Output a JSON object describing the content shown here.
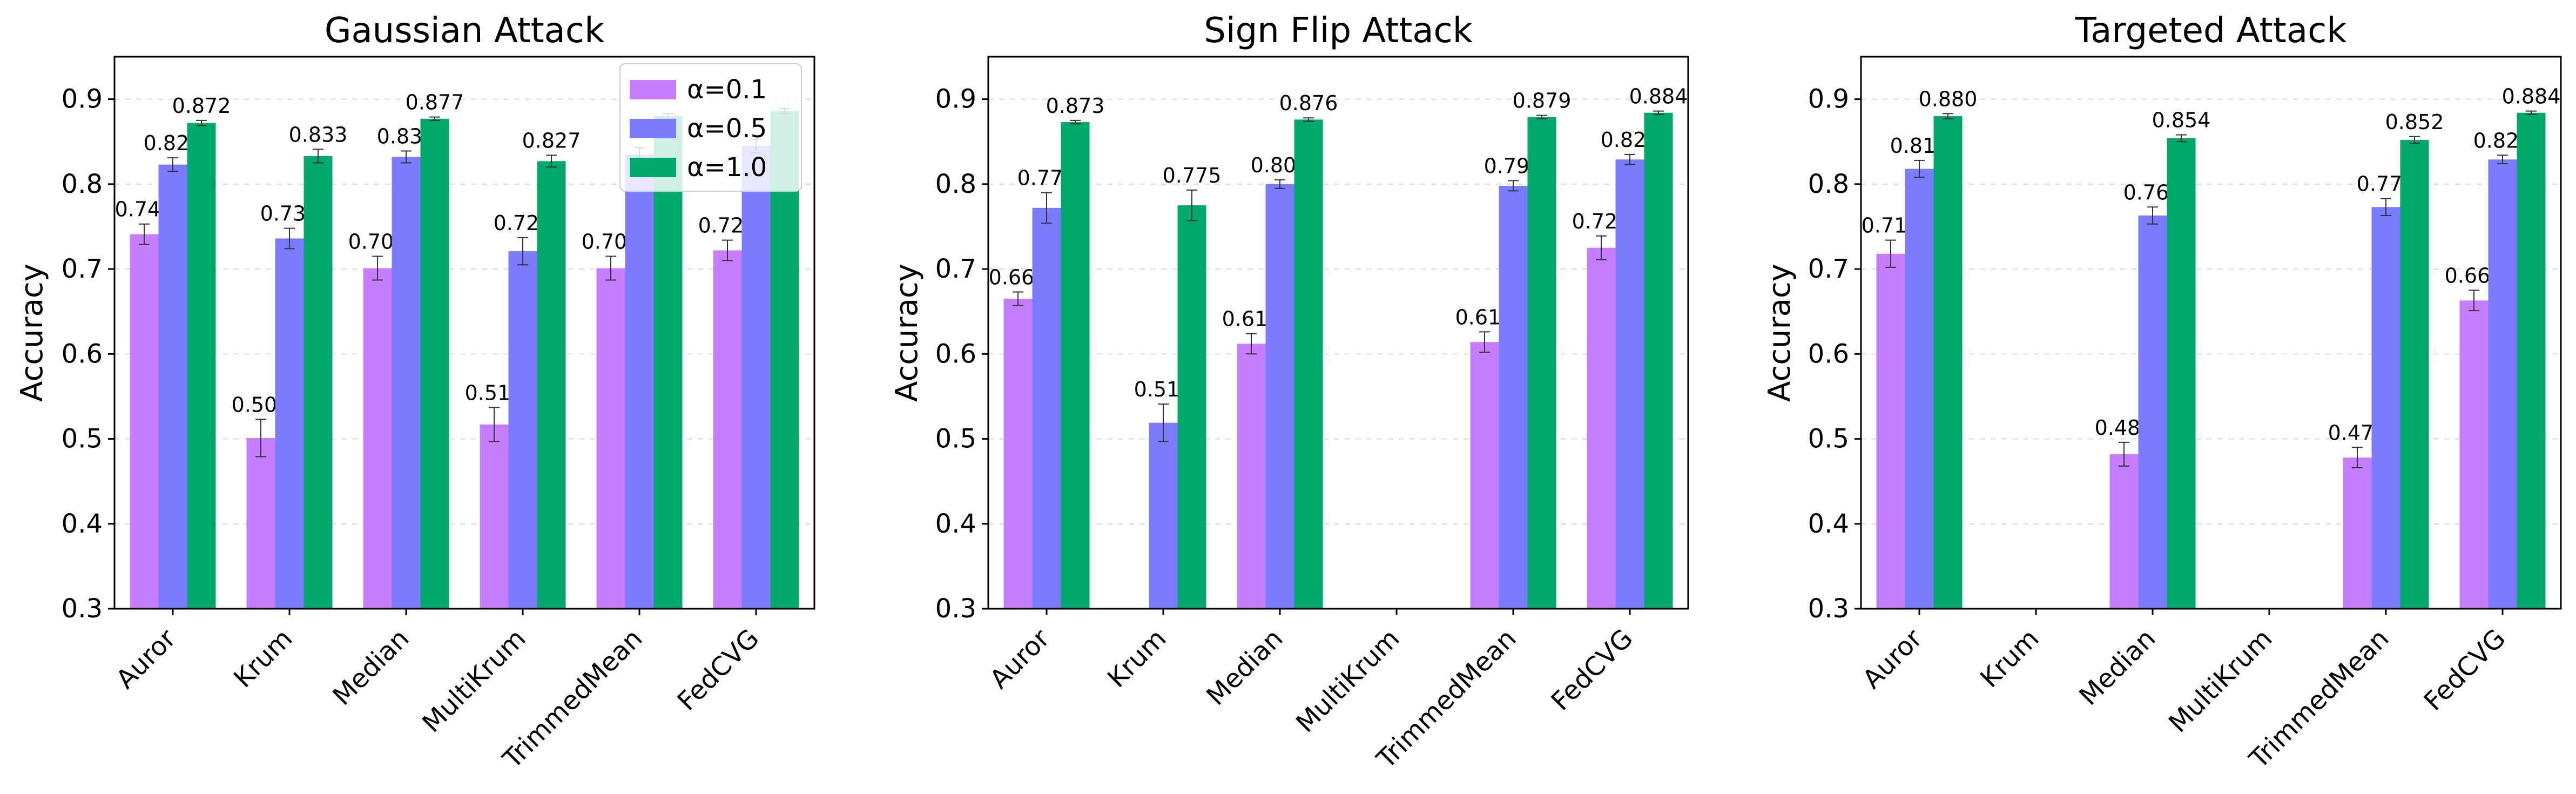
{
  "colors": {
    "alpha_0_1": "#c77dff",
    "alpha_0_5": "#7b7bff",
    "alpha_1_0": "#00a86b",
    "errorbar": "#333333",
    "grid": "#d9d9d9"
  },
  "legend": {
    "placement": "top-right of first panel",
    "entries": [
      "α=0.1",
      "α=0.5",
      "α=1.0"
    ]
  },
  "chart_data": [
    {
      "type": "bar",
      "title": "Gaussian Attack",
      "ylabel": "Accuracy",
      "ylim": [
        0.3,
        0.95
      ],
      "yticks": [
        "0.3",
        "0.4",
        "0.5",
        "0.6",
        "0.7",
        "0.8",
        "0.9"
      ],
      "grid": "horizontal dashed",
      "categories": [
        "Auror",
        "Krum",
        "Median",
        "MultiKrum",
        "TrimmedMean",
        "FedCVG"
      ],
      "series": [
        {
          "name": "α=0.1",
          "values": [
            0.741,
            0.501,
            0.701,
            0.517,
            0.701,
            0.722
          ],
          "errors": [
            0.012,
            0.022,
            0.014,
            0.02,
            0.014,
            0.012
          ]
        },
        {
          "name": "α=0.5",
          "values": [
            0.823,
            0.736,
            0.832,
            0.721,
            0.835,
            0.845
          ],
          "errors": [
            0.008,
            0.012,
            0.007,
            0.016,
            0.008,
            0.008
          ]
        },
        {
          "name": "α=1.0",
          "values": [
            0.872,
            0.833,
            0.877,
            0.827,
            0.88,
            0.886
          ],
          "errors": [
            0.003,
            0.008,
            0.002,
            0.007,
            0.003,
            0.003
          ]
        }
      ],
      "value_labels": [
        [
          "0.741",
          "0.501",
          "0.701",
          "0.517",
          "0.701",
          "0.722"
        ],
        [
          "0.823",
          "0.736",
          "0.832",
          "0.721",
          "",
          ""
        ],
        [
          "0.872",
          "0.833",
          "0.877",
          "0.827",
          "",
          ""
        ]
      ]
    },
    {
      "type": "bar",
      "title": "Sign Flip Attack",
      "ylabel": "Accuracy",
      "ylim": [
        0.3,
        0.95
      ],
      "yticks": [
        "0.3",
        "0.4",
        "0.5",
        "0.6",
        "0.7",
        "0.8",
        "0.9"
      ],
      "grid": "horizontal dashed",
      "categories": [
        "Auror",
        "Krum",
        "Median",
        "MultiKrum",
        "TrimmedMean",
        "FedCVG"
      ],
      "series": [
        {
          "name": "α=0.1",
          "values": [
            0.665,
            null,
            0.612,
            null,
            0.614,
            0.725
          ],
          "errors": [
            0.008,
            0,
            0.012,
            0,
            0.012,
            0.014
          ]
        },
        {
          "name": "α=0.5",
          "values": [
            0.772,
            0.519,
            0.8,
            null,
            0.798,
            0.829
          ],
          "errors": [
            0.018,
            0.022,
            0.005,
            0,
            0.006,
            0.006
          ]
        },
        {
          "name": "α=1.0",
          "values": [
            0.873,
            0.775,
            0.876,
            null,
            0.879,
            0.884
          ],
          "errors": [
            0.002,
            0.018,
            0.002,
            0,
            0.002,
            0.002
          ]
        }
      ],
      "value_labels": [
        [
          "0.665",
          "",
          "0.612",
          "",
          "0.614",
          "0.725"
        ],
        [
          "0.772",
          "0.519",
          "0.800",
          "",
          "0.798",
          "0.829"
        ],
        [
          "0.873",
          "0.775",
          "0.876",
          "",
          "0.879",
          "0.884"
        ]
      ]
    },
    {
      "type": "bar",
      "title": "Targeted Attack",
      "ylabel": "Accuracy",
      "ylim": [
        0.3,
        0.95
      ],
      "yticks": [
        "0.3",
        "0.4",
        "0.5",
        "0.6",
        "0.7",
        "0.8",
        "0.9"
      ],
      "grid": "horizontal dashed",
      "categories": [
        "Auror",
        "Krum",
        "Median",
        "MultiKrum",
        "TrimmedMean",
        "FedCVG"
      ],
      "series": [
        {
          "name": "α=0.1",
          "values": [
            0.718,
            null,
            0.482,
            null,
            0.478,
            0.663
          ],
          "errors": [
            0.016,
            0,
            0.014,
            0,
            0.012,
            0.012
          ]
        },
        {
          "name": "α=0.5",
          "values": [
            0.818,
            null,
            0.763,
            null,
            0.773,
            0.829
          ],
          "errors": [
            0.01,
            0,
            0.01,
            0,
            0.01,
            0.005
          ]
        },
        {
          "name": "α=1.0",
          "values": [
            0.88,
            null,
            0.854,
            null,
            0.852,
            0.884
          ],
          "errors": [
            0.003,
            0,
            0.004,
            0,
            0.004,
            0.002
          ]
        }
      ],
      "value_labels": [
        [
          "0.718",
          "",
          "0.482",
          "",
          "0.478",
          "0.663"
        ],
        [
          "0.818",
          "",
          "0.763",
          "",
          "0.773",
          "0.829"
        ],
        [
          "0.880",
          "",
          "0.854",
          "",
          "0.852",
          "0.884"
        ]
      ]
    }
  ]
}
